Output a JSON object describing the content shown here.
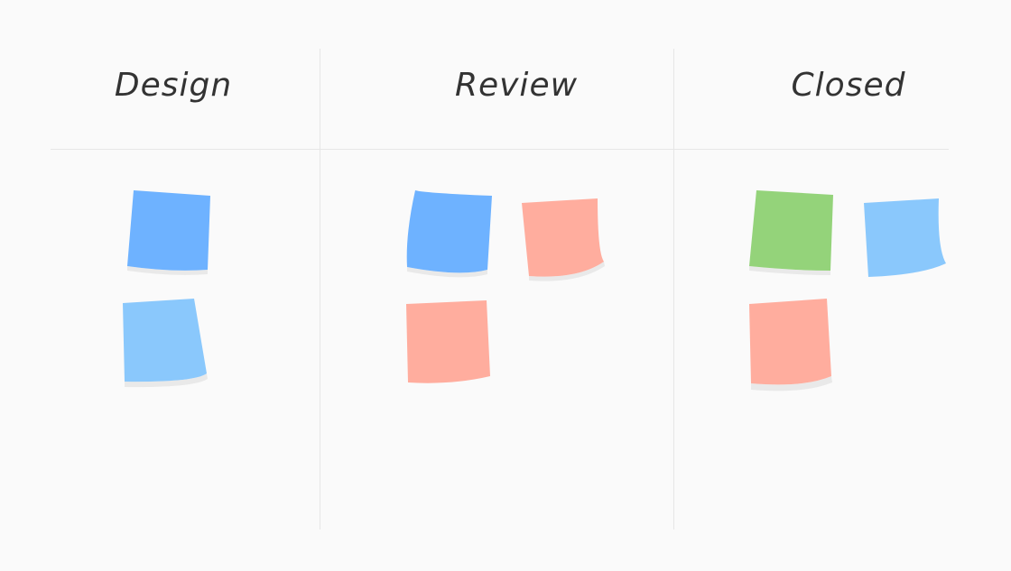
{
  "columns": [
    {
      "title": "Design",
      "notes": [
        {
          "color": "#6eb2ff"
        },
        {
          "color": "#8ac8fc"
        }
      ]
    },
    {
      "title": "Review",
      "notes": [
        {
          "color": "#6eb2ff"
        },
        {
          "color": "#ffad9e"
        },
        {
          "color": "#ffad9e"
        }
      ]
    },
    {
      "title": "Closed",
      "notes": [
        {
          "color": "#94d37a"
        },
        {
          "color": "#8ac8fc"
        },
        {
          "color": "#ffad9e"
        }
      ]
    }
  ],
  "colors": {
    "background": "#fafafa",
    "divider": "#e6e6e6",
    "shadow": "#e9e9e9",
    "text": "#333333"
  }
}
